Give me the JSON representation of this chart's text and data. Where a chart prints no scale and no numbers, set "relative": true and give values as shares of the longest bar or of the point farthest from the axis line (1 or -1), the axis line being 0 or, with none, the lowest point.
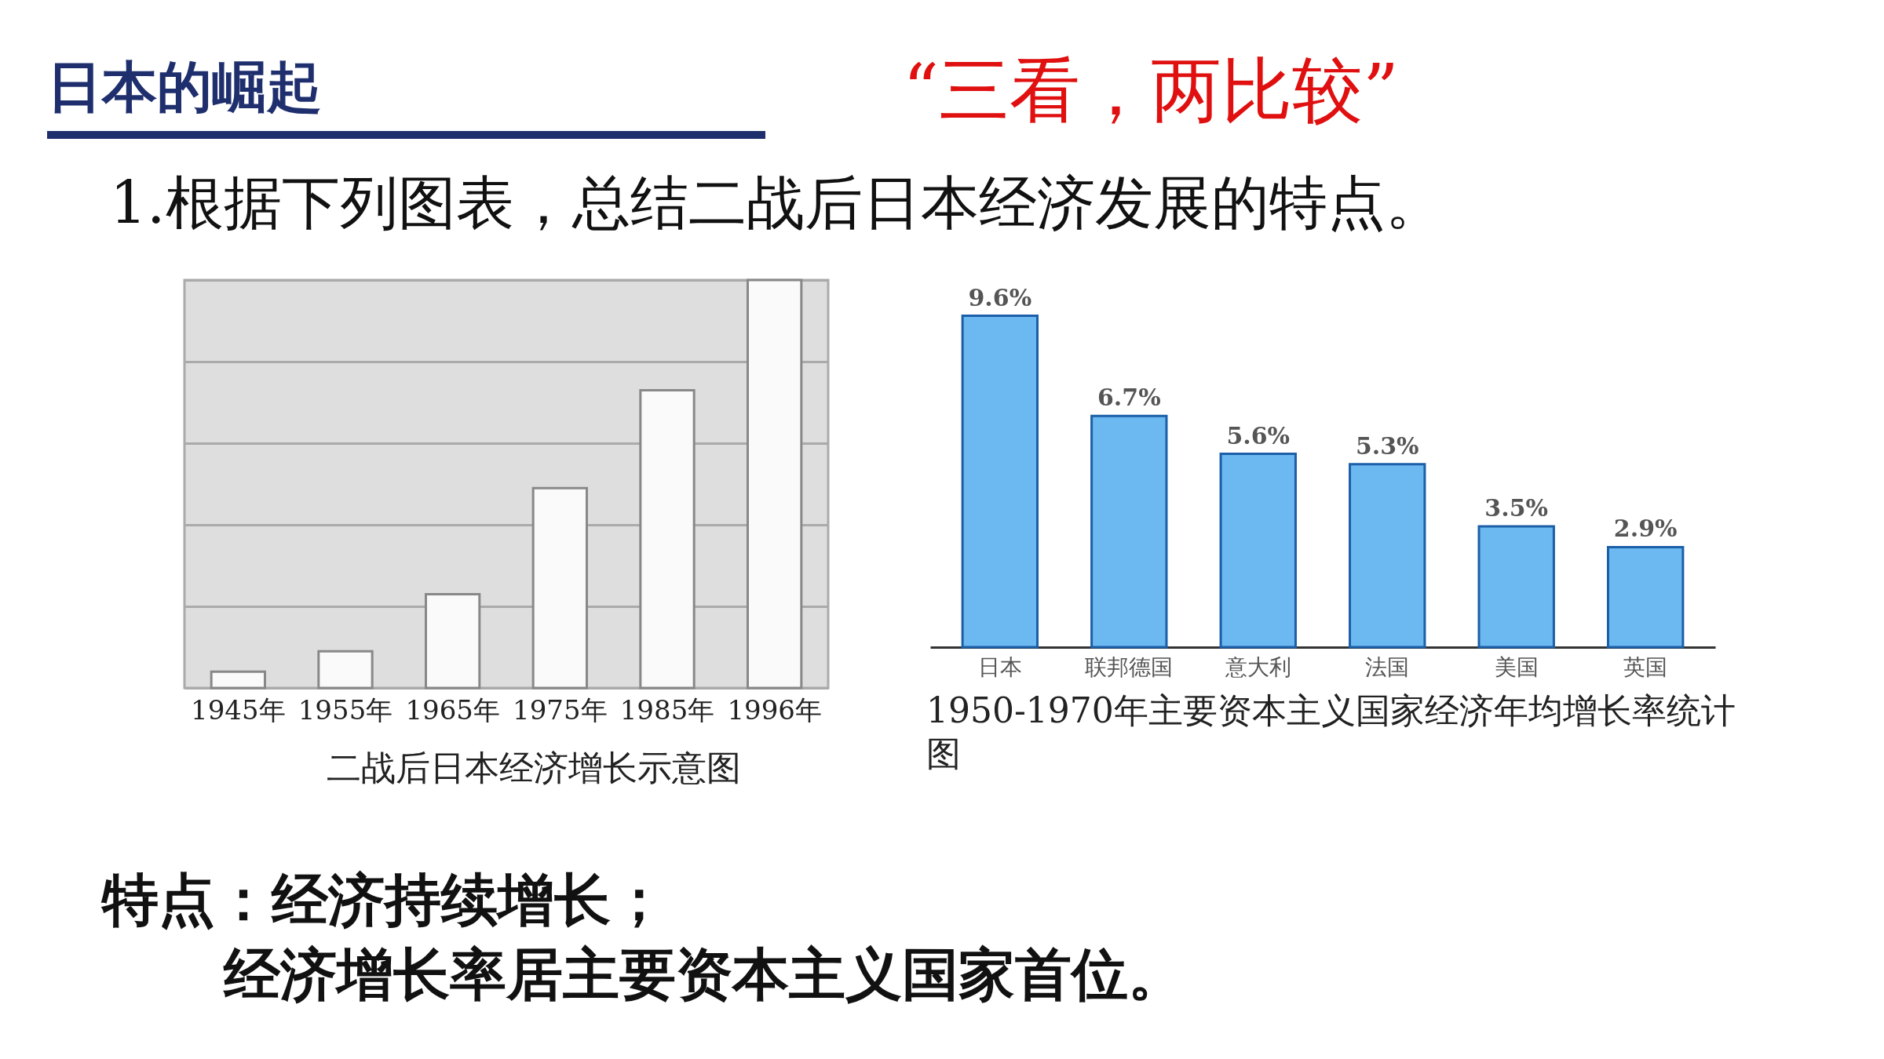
{
  "chart_data": [
    {
      "type": "other",
      "title": "日本的崛起",
      "subtitle": "“三看，两比较”",
      "annotations": [
        "1.根据下列图表，总结二战后日本经济发展的特点。"
      ]
    },
    {
      "type": "bar",
      "title": "二战后日本经济增长示意图",
      "categories": [
        "1945年",
        "1955年",
        "1965年",
        "1975年",
        "1985年",
        "1996年"
      ],
      "values": [
        0.04,
        0.09,
        0.23,
        0.49,
        0.73,
        1
      ],
      "color": "#fafafa",
      "relative": true,
      "grid": true
    },
    {
      "type": "bar",
      "title": "1950-1970年主要资本主义国家经济年均增长率统计图",
      "categories": [
        "日本",
        "联邦德国",
        "意大利",
        "法国",
        "美国",
        "英国"
      ],
      "values": [
        9.6,
        6.7,
        5.6,
        5.3,
        3.5,
        2.9
      ],
      "value_labels": [
        "9.6%",
        "6.7%",
        "5.6%",
        "5.3%",
        "3.5%",
        "2.9%"
      ],
      "color": "#6cb8f0"
    },
    {
      "type": "other",
      "annotations": [
        "特点：经济持续增长；",
        "经济增长率居主要资本主义国家首位。"
      ]
    }
  ]
}
